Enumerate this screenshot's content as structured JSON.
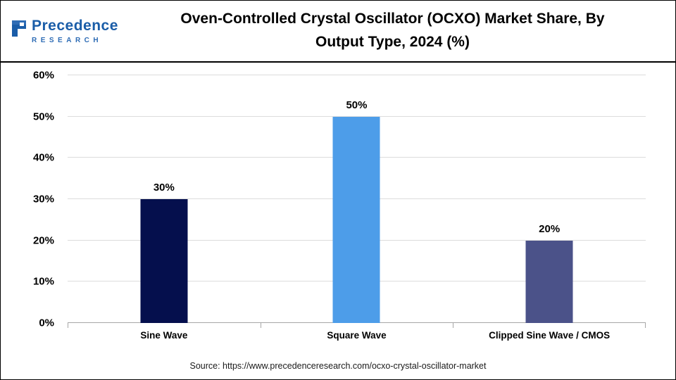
{
  "header": {
    "logo": {
      "brand": "Precedence",
      "sub": "RESEARCH"
    },
    "title_line1": "Oven-Controlled Crystal Oscillator (OCXO) Market Share, By",
    "title_line2": "Output Type, 2024 (%)"
  },
  "chart_data": {
    "type": "bar",
    "title": "Oven-Controlled Crystal Oscillator (OCXO) Market Share, By Output Type, 2024 (%)",
    "categories": [
      "Sine Wave",
      "Square Wave",
      "Clipped Sine Wave / CMOS"
    ],
    "values": [
      30,
      50,
      20
    ],
    "value_labels": [
      "30%",
      "50%",
      "20%"
    ],
    "bar_colors": [
      "#050f4d",
      "#4d9de9",
      "#4b5289"
    ],
    "ylim": [
      0,
      60
    ],
    "ytick_step": 10,
    "ytick_labels": [
      "0%",
      "10%",
      "20%",
      "30%",
      "40%",
      "50%",
      "60%"
    ],
    "grid": true,
    "legend": "none",
    "xlabel": "",
    "ylabel": ""
  },
  "footer": {
    "source": "Source: https://www.precedenceresearch.com/ocxo-crystal-oscillator-market"
  }
}
